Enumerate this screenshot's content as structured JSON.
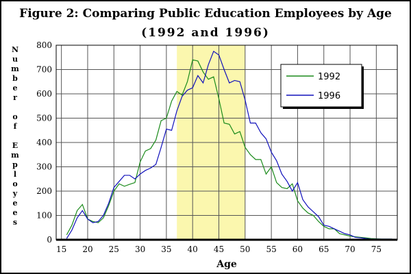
{
  "chart_data": {
    "type": "line",
    "title_line1": "Figure 2:  Comparing Public Education Employees by Age",
    "title_line2": "(1992 and 1996)",
    "xlabel": "Age",
    "ylabel": "Number of Employees",
    "xlim": [
      14,
      79
    ],
    "ylim": [
      0,
      800
    ],
    "x_ticks": [
      15,
      20,
      25,
      30,
      35,
      40,
      45,
      50,
      55,
      60,
      65,
      70,
      75
    ],
    "y_ticks": [
      0,
      100,
      200,
      300,
      400,
      500,
      600,
      700,
      800
    ],
    "grid": true,
    "highlight_band": {
      "x_from": 37,
      "x_to": 50,
      "color": "#fbf7ae"
    },
    "legend_position": "upper-right",
    "series": [
      {
        "name": "1992",
        "color": "#1a8a1a",
        "x": [
          16,
          17,
          18,
          19,
          20,
          21,
          22,
          23,
          24,
          25,
          26,
          27,
          28,
          29,
          30,
          31,
          32,
          33,
          34,
          35,
          36,
          37,
          38,
          39,
          40,
          41,
          42,
          43,
          44,
          45,
          46,
          47,
          48,
          49,
          50,
          51,
          52,
          53,
          54,
          55,
          56,
          57,
          58,
          59,
          60,
          61,
          62,
          63,
          64,
          65,
          66,
          67,
          68,
          69,
          70,
          71,
          72,
          73,
          74,
          75,
          76,
          77,
          78
        ],
        "values": [
          20,
          60,
          120,
          145,
          85,
          75,
          70,
          90,
          140,
          200,
          230,
          220,
          228,
          235,
          320,
          365,
          375,
          410,
          490,
          500,
          570,
          610,
          595,
          650,
          740,
          735,
          690,
          660,
          670,
          580,
          480,
          475,
          435,
          445,
          380,
          350,
          330,
          330,
          270,
          300,
          235,
          215,
          210,
          230,
          160,
          130,
          110,
          100,
          75,
          55,
          45,
          45,
          25,
          20,
          15,
          12,
          10,
          8,
          5,
          4,
          3,
          3,
          3
        ]
      },
      {
        "name": "1996",
        "color": "#1111bb",
        "x": [
          16,
          17,
          18,
          19,
          20,
          21,
          22,
          23,
          24,
          25,
          26,
          27,
          28,
          29,
          30,
          31,
          32,
          33,
          34,
          35,
          36,
          37,
          38,
          39,
          40,
          41,
          42,
          43,
          44,
          45,
          46,
          47,
          48,
          49,
          50,
          51,
          52,
          53,
          54,
          55,
          56,
          57,
          58,
          59,
          60,
          61,
          62,
          63,
          64,
          65,
          66,
          67,
          68,
          69,
          70,
          71,
          72,
          73,
          74,
          75,
          76,
          77,
          78
        ],
        "values": [
          5,
          40,
          90,
          120,
          85,
          70,
          75,
          100,
          150,
          215,
          240,
          265,
          265,
          250,
          270,
          285,
          295,
          310,
          380,
          455,
          450,
          530,
          590,
          615,
          625,
          675,
          645,
          720,
          775,
          760,
          700,
          645,
          655,
          650,
          575,
          480,
          480,
          440,
          415,
          360,
          325,
          270,
          240,
          200,
          235,
          165,
          135,
          115,
          95,
          60,
          55,
          45,
          35,
          25,
          20,
          10,
          8,
          5,
          3,
          3,
          3,
          3,
          3
        ]
      }
    ]
  }
}
